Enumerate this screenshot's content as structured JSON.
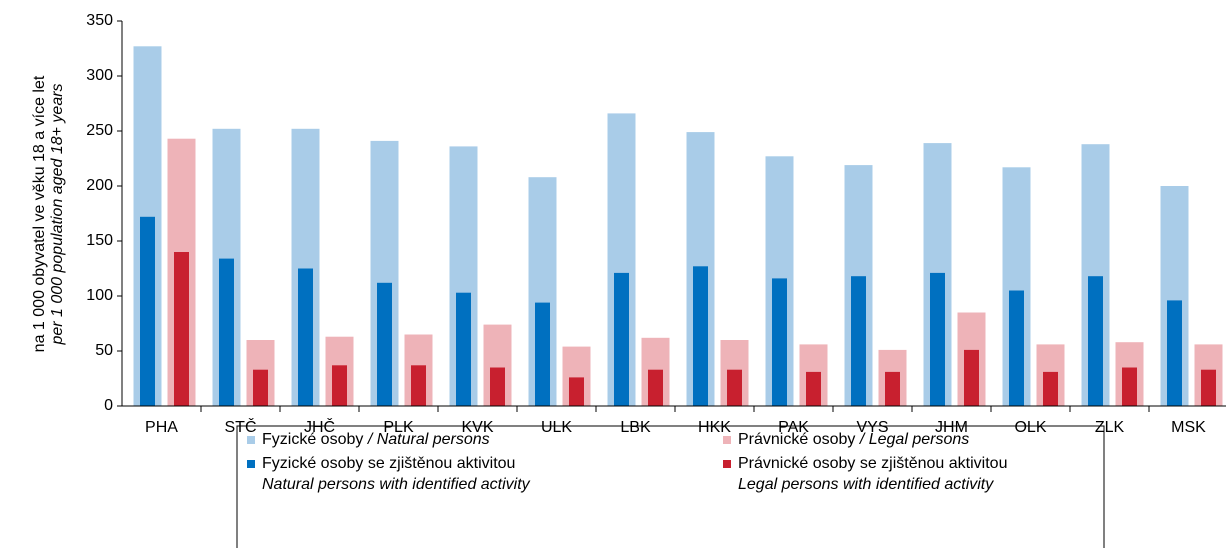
{
  "chart_data": {
    "type": "bar",
    "ylabel": "na 1 000 obyvatel ve věku 18 a více let",
    "ylabel_en": "per 1 000 population aged 18+ years",
    "categories": [
      "PHA",
      "STČ",
      "JHČ",
      "PLK",
      "KVK",
      "ULK",
      "LBK",
      "HKK",
      "PAK",
      "VYS",
      "JHM",
      "OLK",
      "ZLK",
      "MSK"
    ],
    "series": [
      {
        "name": "Fyzické osoby",
        "name_en": "/ Natural persons",
        "color": "#a9cce8",
        "values": [
          327,
          252,
          252,
          241,
          236,
          208,
          266,
          249,
          227,
          219,
          239,
          217,
          238,
          200
        ]
      },
      {
        "name": "Právnické osoby",
        "name_en": "/ Legal persons",
        "color": "#eeb3b8",
        "values": [
          243,
          60,
          63,
          65,
          74,
          54,
          62,
          60,
          56,
          51,
          85,
          56,
          58,
          56
        ]
      },
      {
        "name": "Fyzické osoby se zjištěnou aktivitou",
        "name_en": "Natural persons with identified activity",
        "color": "#0070c0",
        "values": [
          172,
          134,
          125,
          112,
          103,
          94,
          121,
          127,
          116,
          118,
          121,
          105,
          118,
          96
        ]
      },
      {
        "name": "Právnické osoby se zjištěnou aktivitou",
        "name_en": "Legal persons with identified activity",
        "color": "#c8202f",
        "values": [
          140,
          33,
          37,
          37,
          35,
          26,
          33,
          33,
          31,
          31,
          51,
          31,
          35,
          33
        ]
      }
    ],
    "ylim": [
      0,
      350
    ],
    "yticks": [
      0,
      50,
      100,
      150,
      200,
      250,
      300,
      350
    ]
  }
}
